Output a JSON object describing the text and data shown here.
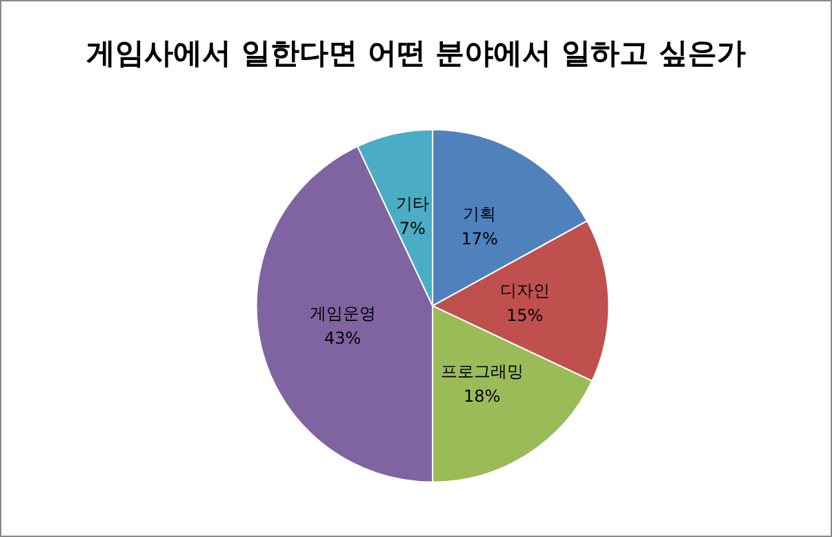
{
  "chart_data": {
    "type": "pie",
    "title": "게임사에서 일한다면 어떤 분야에서 일하고 싶은가",
    "categories": [
      "기획",
      "디자인",
      "프로그래밍",
      "게임운영",
      "기타"
    ],
    "values": [
      17,
      15,
      18,
      43,
      7
    ],
    "value_labels": [
      "17%",
      "15%",
      "18%",
      "43%",
      "7%"
    ],
    "colors": [
      "#4f81bd",
      "#c0504d",
      "#9bbb59",
      "#8064a2",
      "#4bacc6"
    ],
    "legend": false
  }
}
